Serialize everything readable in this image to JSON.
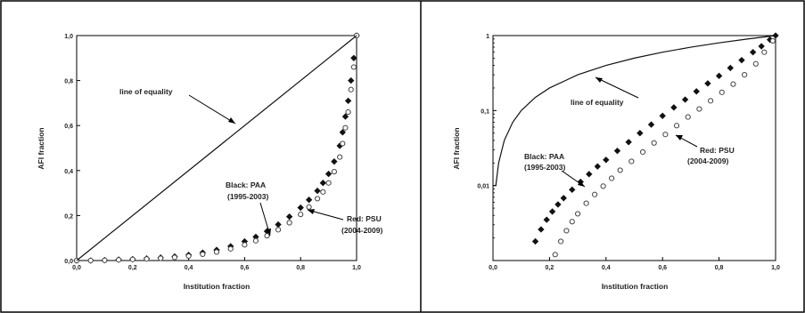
{
  "chart_data": [
    {
      "type": "scatter",
      "panel": "left",
      "xlabel": "Institution fraction",
      "ylabel": "AFI fraction",
      "xscale": "linear",
      "yscale": "linear",
      "xlim": [
        0.0,
        1.0
      ],
      "ylim": [
        0.0,
        1.0
      ],
      "xticks": [
        "0,0",
        "0,2",
        "0,4",
        "0,6",
        "0,8",
        "1,0"
      ],
      "yticks": [
        "0,0",
        "0,2",
        "0,4",
        "0,6",
        "0,8",
        "1,0"
      ],
      "grid": false,
      "series": [
        {
          "name": "Black: PAA (1995-2003)",
          "marker": "filled",
          "color": "#111111",
          "x": [
            0.0,
            0.05,
            0.1,
            0.15,
            0.2,
            0.25,
            0.3,
            0.35,
            0.4,
            0.45,
            0.5,
            0.55,
            0.6,
            0.64,
            0.68,
            0.72,
            0.76,
            0.8,
            0.83,
            0.86,
            0.88,
            0.9,
            0.92,
            0.94,
            0.95,
            0.96,
            0.97,
            0.98,
            0.99,
            1.0
          ],
          "y": [
            0.0,
            0.0,
            0.002,
            0.004,
            0.006,
            0.009,
            0.013,
            0.018,
            0.025,
            0.035,
            0.047,
            0.063,
            0.085,
            0.105,
            0.13,
            0.16,
            0.195,
            0.235,
            0.27,
            0.31,
            0.345,
            0.385,
            0.44,
            0.51,
            0.57,
            0.64,
            0.71,
            0.8,
            0.9,
            1.0
          ]
        },
        {
          "name": "Red: PSU (2004-2009)",
          "marker": "open",
          "color": "#444444",
          "x": [
            0.0,
            0.05,
            0.1,
            0.15,
            0.2,
            0.25,
            0.3,
            0.35,
            0.4,
            0.45,
            0.5,
            0.55,
            0.6,
            0.64,
            0.68,
            0.72,
            0.76,
            0.8,
            0.83,
            0.86,
            0.88,
            0.9,
            0.92,
            0.94,
            0.95,
            0.96,
            0.97,
            0.98,
            0.99,
            1.0
          ],
          "y": [
            0.0,
            0.0,
            0.001,
            0.003,
            0.005,
            0.007,
            0.01,
            0.014,
            0.02,
            0.028,
            0.038,
            0.052,
            0.07,
            0.088,
            0.11,
            0.137,
            0.168,
            0.205,
            0.238,
            0.275,
            0.305,
            0.345,
            0.395,
            0.46,
            0.52,
            0.59,
            0.66,
            0.76,
            0.86,
            1.0
          ]
        },
        {
          "name": "line of equality",
          "marker": "line",
          "color": "#111111",
          "x": [
            0.0,
            1.0
          ],
          "y": [
            0.0,
            1.0
          ]
        }
      ],
      "annotations": {
        "equality": "line of equality",
        "black_1": "Black: PAA",
        "black_2": "(1995-2003)",
        "red_1": "Red: PSU",
        "red_2": "(2004-2009)"
      }
    },
    {
      "type": "scatter",
      "panel": "right",
      "xlabel": "Institution fraction",
      "ylabel": "AFI fraction",
      "xscale": "linear",
      "yscale": "log",
      "xlim": [
        0.0,
        1.0
      ],
      "ylim": [
        0.001,
        1.0
      ],
      "xticks": [
        "0,0",
        "0,2",
        "0,4",
        "0,6",
        "0,8",
        "1,0"
      ],
      "yticks": [
        "1",
        "0,1",
        "0,01"
      ],
      "grid": false,
      "series": [
        {
          "name": "Black: PAA (1995-2003)",
          "marker": "filled",
          "color": "#111111",
          "x": [
            0.15,
            0.17,
            0.19,
            0.21,
            0.23,
            0.25,
            0.28,
            0.31,
            0.34,
            0.37,
            0.4,
            0.44,
            0.48,
            0.52,
            0.56,
            0.6,
            0.64,
            0.68,
            0.72,
            0.76,
            0.8,
            0.84,
            0.88,
            0.92,
            0.95,
            0.98,
            1.0
          ],
          "y": [
            0.0018,
            0.0026,
            0.0035,
            0.0045,
            0.0056,
            0.0068,
            0.0088,
            0.0112,
            0.0142,
            0.018,
            0.022,
            0.029,
            0.038,
            0.05,
            0.065,
            0.085,
            0.11,
            0.14,
            0.18,
            0.23,
            0.29,
            0.37,
            0.47,
            0.6,
            0.72,
            0.88,
            1.0
          ]
        },
        {
          "name": "Red: PSU (2004-2009)",
          "marker": "open",
          "color": "#444444",
          "x": [
            0.22,
            0.24,
            0.26,
            0.28,
            0.3,
            0.33,
            0.36,
            0.39,
            0.42,
            0.45,
            0.49,
            0.53,
            0.57,
            0.61,
            0.65,
            0.69,
            0.73,
            0.77,
            0.81,
            0.85,
            0.89,
            0.93,
            0.96,
            0.99
          ],
          "y": [
            0.0012,
            0.0018,
            0.0025,
            0.0033,
            0.0042,
            0.0058,
            0.0076,
            0.0098,
            0.0125,
            0.016,
            0.021,
            0.028,
            0.037,
            0.048,
            0.063,
            0.082,
            0.105,
            0.135,
            0.175,
            0.225,
            0.3,
            0.42,
            0.6,
            0.85
          ]
        },
        {
          "name": "line of equality",
          "marker": "line",
          "color": "#111111",
          "x": [
            0.0,
            0.01,
            0.02,
            0.04,
            0.07,
            0.1,
            0.15,
            0.2,
            0.3,
            0.4,
            0.5,
            0.6,
            0.7,
            0.8,
            0.9,
            1.0
          ],
          "y": [
            0.01,
            0.01,
            0.02,
            0.04,
            0.07,
            0.1,
            0.15,
            0.2,
            0.3,
            0.4,
            0.5,
            0.6,
            0.7,
            0.8,
            0.9,
            1.0
          ]
        }
      ],
      "annotations": {
        "equality": "line of equality",
        "black_1": "Black: PAA",
        "black_2": "(1995-2003)",
        "red_1": "Red: PSU",
        "red_2": "(2004-2009)"
      }
    }
  ]
}
